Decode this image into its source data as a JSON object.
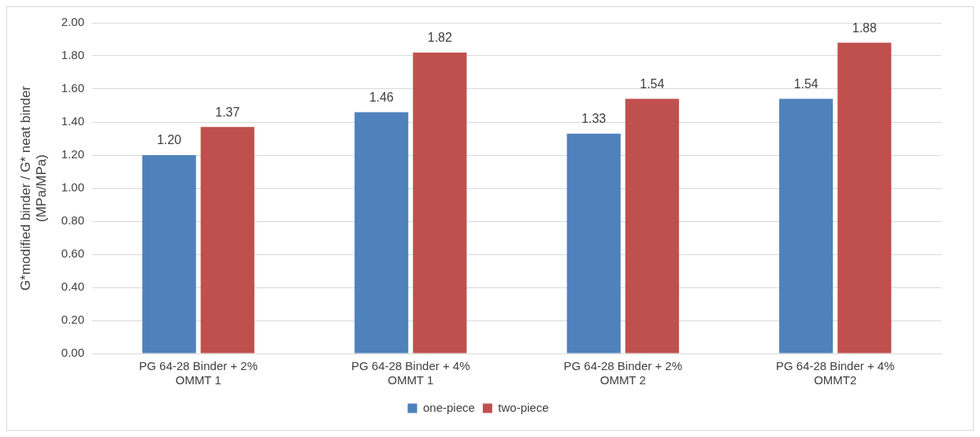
{
  "chart_data": {
    "type": "bar",
    "ylabel": "G*modified binder / G* neat binder (MPa/MPa)",
    "categories": [
      "PG 64-28 Binder + 2% OMMT 1",
      "PG 64-28 Binder + 4% OMMT 1",
      "PG 64-28 Binder + 2% OMMT 2",
      "PG 64-28 Binder + 4% OMMT2"
    ],
    "series": [
      {
        "name": "one-piece",
        "color": "#4f81bd",
        "values": [
          1.2,
          1.46,
          1.33,
          1.54
        ],
        "value_labels": [
          "1.20",
          "1.46",
          "1.33",
          "1.54"
        ]
      },
      {
        "name": "two-piece",
        "color": "#c0504d",
        "values": [
          1.37,
          1.82,
          1.54,
          1.88
        ],
        "value_labels": [
          "1.37",
          "1.82",
          "1.54",
          "1.88"
        ]
      }
    ],
    "ylim": [
      0,
      2
    ],
    "yticks": [
      {
        "value": 0,
        "label": "0.00"
      },
      {
        "value": 0.2,
        "label": "0.20"
      },
      {
        "value": 0.4,
        "label": "0.40"
      },
      {
        "value": 0.6,
        "label": "0.60"
      },
      {
        "value": 0.8,
        "label": "0.80"
      },
      {
        "value": 1,
        "label": "1.00"
      },
      {
        "value": 1.2,
        "label": "1.20"
      },
      {
        "value": 1.4,
        "label": "1.40"
      },
      {
        "value": 1.6,
        "label": "1.60"
      },
      {
        "value": 1.8,
        "label": "1.80"
      },
      {
        "value": 2,
        "label": "2.00"
      }
    ],
    "grid": "y",
    "legend": "bottom"
  }
}
